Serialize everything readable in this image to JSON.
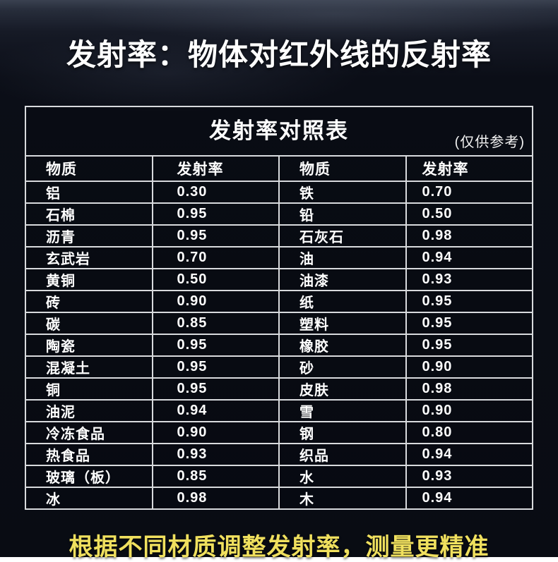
{
  "page": {
    "main_title": "发射率：物体对红外线的反射率",
    "footer_note": "根据不同材质调整发射率，测量更精准"
  },
  "table": {
    "caption": "发射率对照表",
    "caption_note": "(仅供参考)",
    "headers": [
      "物质",
      "发射率",
      "物质",
      "发射率"
    ],
    "rows": [
      [
        "铝",
        "0.30",
        "铁",
        "0.70"
      ],
      [
        "石棉",
        "0.95",
        "铅",
        "0.50"
      ],
      [
        "沥青",
        "0.95",
        "石灰石",
        "0.98"
      ],
      [
        "玄武岩",
        "0.70",
        "油",
        "0.94"
      ],
      [
        "黄铜",
        "0.50",
        "油漆",
        "0.93"
      ],
      [
        "砖",
        "0.90",
        "纸",
        "0.95"
      ],
      [
        "碳",
        "0.85",
        "塑料",
        "0.95"
      ],
      [
        "陶瓷",
        "0.95",
        "橡胶",
        "0.95"
      ],
      [
        "混凝土",
        "0.95",
        "砂",
        "0.90"
      ],
      [
        "铜",
        "0.95",
        "皮肤",
        "0.98"
      ],
      [
        "油泥",
        "0.94",
        "雪",
        "0.90"
      ],
      [
        "冷冻食品",
        "0.90",
        "钢",
        "0.80"
      ],
      [
        "热食品",
        "0.93",
        "织品",
        "0.94"
      ],
      [
        "玻璃（板）",
        "0.85",
        "水",
        "0.93"
      ],
      [
        "冰",
        "0.98",
        "木",
        "0.94"
      ]
    ]
  },
  "colors": {
    "background": "#0b0e17",
    "text": "#ffffff",
    "table_border": "#d8dadd",
    "footer_accent": "#f0e05e"
  }
}
